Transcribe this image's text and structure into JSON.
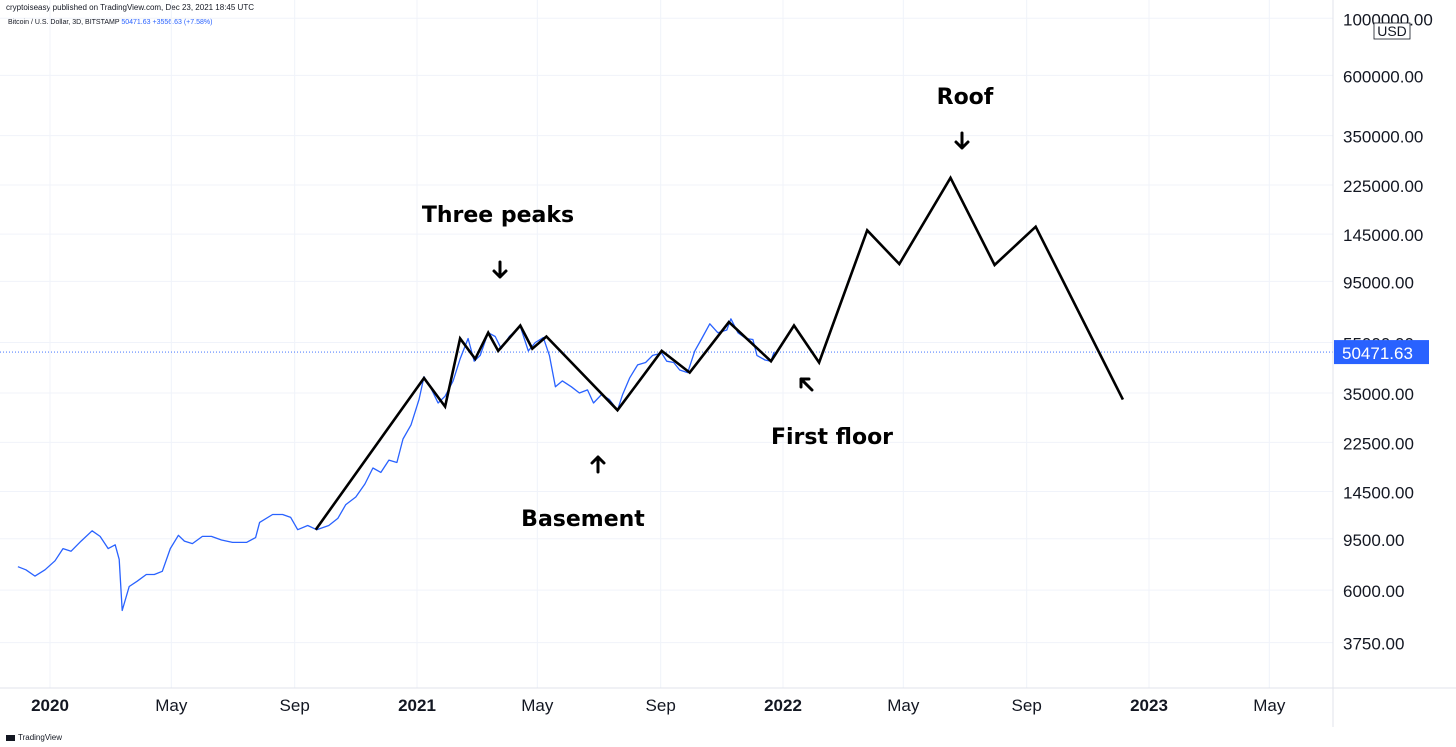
{
  "header": {
    "publisher": "cryptoiseasy published on TradingView.com, Dec 23, 2021 18:45 UTC",
    "symbol": "Bitcoin / U.S. Dollar, 3D, BITSTAMP",
    "last": "50471.63",
    "change": "+3556.63 (+7.58%)"
  },
  "footer": {
    "brand": "TradingView"
  },
  "colors": {
    "price_line": "#2962ff",
    "projection": "#000000",
    "grid": "#f0f3fa",
    "tag_bg": "#2962ff"
  },
  "chart_data": {
    "type": "line",
    "scale": "log",
    "currency_label": "USD",
    "current_price_label": "50471.63",
    "current_price": 50471.63,
    "y_tick_labels": [
      "1000000.00",
      "600000.00",
      "350000.00",
      "225000.00",
      "145000.00",
      "95000.00",
      "55000.00",
      "35000.00",
      "22500.00",
      "14500.00",
      "9500.00",
      "6000.00",
      "3750.00"
    ],
    "y_ticks": [
      1000000,
      600000,
      350000,
      225000,
      145000,
      95000,
      55000,
      35000,
      22500,
      14500,
      9500,
      6000,
      3750
    ],
    "x_ticks": [
      {
        "label": "2020",
        "date": "2020-01-01",
        "bold": true
      },
      {
        "label": "May",
        "date": "2020-05-01",
        "bold": false
      },
      {
        "label": "Sep",
        "date": "2020-09-01",
        "bold": false
      },
      {
        "label": "2021",
        "date": "2021-01-01",
        "bold": true
      },
      {
        "label": "May",
        "date": "2021-05-01",
        "bold": false
      },
      {
        "label": "Sep",
        "date": "2021-09-01",
        "bold": false
      },
      {
        "label": "2022",
        "date": "2022-01-01",
        "bold": true
      },
      {
        "label": "May",
        "date": "2022-05-01",
        "bold": false
      },
      {
        "label": "Sep",
        "date": "2022-09-01",
        "bold": false
      },
      {
        "label": "2023",
        "date": "2023-01-01",
        "bold": true
      },
      {
        "label": "May",
        "date": "2023-05-01",
        "bold": false
      }
    ],
    "series": [
      {
        "type": "price",
        "points": [
          [
            "2019-11-30",
            7400
          ],
          [
            "2019-12-08",
            7200
          ],
          [
            "2019-12-17",
            6800
          ],
          [
            "2019-12-27",
            7200
          ],
          [
            "2020-01-06",
            7800
          ],
          [
            "2020-01-14",
            8700
          ],
          [
            "2020-01-22",
            8500
          ],
          [
            "2020-02-01",
            9300
          ],
          [
            "2020-02-12",
            10200
          ],
          [
            "2020-02-20",
            9700
          ],
          [
            "2020-02-28",
            8700
          ],
          [
            "2020-03-06",
            9000
          ],
          [
            "2020-03-10",
            7900
          ],
          [
            "2020-03-13",
            5000
          ],
          [
            "2020-03-20",
            6200
          ],
          [
            "2020-03-28",
            6500
          ],
          [
            "2020-04-06",
            6900
          ],
          [
            "2020-04-14",
            6900
          ],
          [
            "2020-04-22",
            7100
          ],
          [
            "2020-04-30",
            8700
          ],
          [
            "2020-05-08",
            9800
          ],
          [
            "2020-05-14",
            9300
          ],
          [
            "2020-05-22",
            9100
          ],
          [
            "2020-06-01",
            9700
          ],
          [
            "2020-06-10",
            9700
          ],
          [
            "2020-06-20",
            9400
          ],
          [
            "2020-07-01",
            9200
          ],
          [
            "2020-07-15",
            9200
          ],
          [
            "2020-07-24",
            9600
          ],
          [
            "2020-07-28",
            11000
          ],
          [
            "2020-08-10",
            11800
          ],
          [
            "2020-08-20",
            11800
          ],
          [
            "2020-08-28",
            11500
          ],
          [
            "2020-09-04",
            10300
          ],
          [
            "2020-09-14",
            10700
          ],
          [
            "2020-09-23",
            10300
          ],
          [
            "2020-10-05",
            10700
          ],
          [
            "2020-10-14",
            11400
          ],
          [
            "2020-10-22",
            12900
          ],
          [
            "2020-11-01",
            13800
          ],
          [
            "2020-11-10",
            15500
          ],
          [
            "2020-11-18",
            17900
          ],
          [
            "2020-11-26",
            17200
          ],
          [
            "2020-12-04",
            19200
          ],
          [
            "2020-12-12",
            18800
          ],
          [
            "2020-12-18",
            23200
          ],
          [
            "2020-12-26",
            26300
          ],
          [
            "2021-01-03",
            33000
          ],
          [
            "2021-01-08",
            40500
          ],
          [
            "2021-01-15",
            36500
          ],
          [
            "2021-01-22",
            32000
          ],
          [
            "2021-01-29",
            34000
          ],
          [
            "2021-02-06",
            39000
          ],
          [
            "2021-02-13",
            47500
          ],
          [
            "2021-02-21",
            57000
          ],
          [
            "2021-02-27",
            46500
          ],
          [
            "2021-03-05",
            49000
          ],
          [
            "2021-03-13",
            60000
          ],
          [
            "2021-03-20",
            58000
          ],
          [
            "2021-03-26",
            52000
          ],
          [
            "2021-04-03",
            58000
          ],
          [
            "2021-04-14",
            63500
          ],
          [
            "2021-04-22",
            51000
          ],
          [
            "2021-04-29",
            55000
          ],
          [
            "2021-05-07",
            57500
          ],
          [
            "2021-05-13",
            49000
          ],
          [
            "2021-05-19",
            37000
          ],
          [
            "2021-05-26",
            39000
          ],
          [
            "2021-06-04",
            37000
          ],
          [
            "2021-06-12",
            35000
          ],
          [
            "2021-06-20",
            36000
          ],
          [
            "2021-06-26",
            32000
          ],
          [
            "2021-07-04",
            34500
          ],
          [
            "2021-07-12",
            33000
          ],
          [
            "2021-07-20",
            30000
          ],
          [
            "2021-07-25",
            34500
          ],
          [
            "2021-08-01",
            40000
          ],
          [
            "2021-08-09",
            45000
          ],
          [
            "2021-08-17",
            46000
          ],
          [
            "2021-08-24",
            49000
          ],
          [
            "2021-09-02",
            50000
          ],
          [
            "2021-09-07",
            46500
          ],
          [
            "2021-09-14",
            46000
          ],
          [
            "2021-09-20",
            43000
          ],
          [
            "2021-09-28",
            42000
          ],
          [
            "2021-10-05",
            51000
          ],
          [
            "2021-10-12",
            57000
          ],
          [
            "2021-10-20",
            65000
          ],
          [
            "2021-10-28",
            60000
          ],
          [
            "2021-11-06",
            61500
          ],
          [
            "2021-11-10",
            68000
          ],
          [
            "2021-11-17",
            60000
          ],
          [
            "2021-11-25",
            57000
          ],
          [
            "2021-12-02",
            56500
          ],
          [
            "2021-12-06",
            49000
          ],
          [
            "2021-12-14",
            47000
          ],
          [
            "2021-12-20",
            46500
          ],
          [
            "2021-12-23",
            50471.63
          ]
        ]
      },
      {
        "type": "projection",
        "points": [
          [
            "2020-09-22",
            10300
          ],
          [
            "2021-01-08",
            40000
          ],
          [
            "2021-01-29",
            31000
          ],
          [
            "2021-02-13",
            57000
          ],
          [
            "2021-02-28",
            47500
          ],
          [
            "2021-03-13",
            60000
          ],
          [
            "2021-03-23",
            51000
          ],
          [
            "2021-04-14",
            64000
          ],
          [
            "2021-04-26",
            52000
          ],
          [
            "2021-05-10",
            58000
          ],
          [
            "2021-07-20",
            30000
          ],
          [
            "2021-09-02",
            51000
          ],
          [
            "2021-09-30",
            42000
          ],
          [
            "2021-11-08",
            66000
          ],
          [
            "2021-12-20",
            46500
          ],
          [
            "2022-01-12",
            64000
          ],
          [
            "2022-02-06",
            46000
          ],
          [
            "2022-03-26",
            150000
          ],
          [
            "2022-04-27",
            111000
          ],
          [
            "2022-06-17",
            240000
          ],
          [
            "2022-07-31",
            110000
          ],
          [
            "2022-09-10",
            155000
          ],
          [
            "2022-12-06",
            33000
          ]
        ]
      }
    ],
    "annotations": [
      {
        "text": "Roof",
        "arrow": "down"
      },
      {
        "text": "Three peaks",
        "arrow": "down"
      },
      {
        "text": "Basement",
        "arrow": "up"
      },
      {
        "text": "First floor",
        "arrow": "up-left"
      }
    ]
  }
}
